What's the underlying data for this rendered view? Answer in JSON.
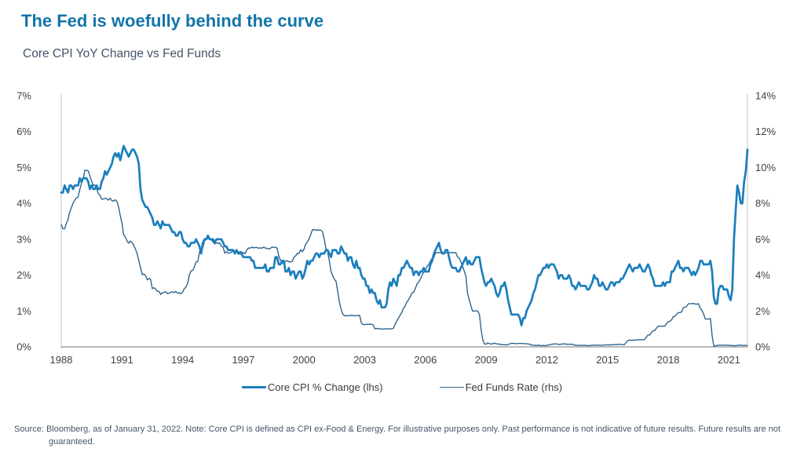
{
  "header": {
    "title": "The Fed is woefully behind the curve",
    "subtitle": "Core CPI YoY Change vs Fed Funds"
  },
  "colors": {
    "title": "#1375A8",
    "subtitle": "#44546A",
    "core_cpi_line": "#1B7EBD",
    "fed_funds_line": "#2D658F",
    "axis_side": "#C6C6C6",
    "axis_bottom": "#909090",
    "tick_text": "#3F3F3F",
    "footnote_text": "#44546A",
    "background": "#FFFFFF"
  },
  "legend": {
    "items": [
      {
        "label": "Core CPI % Change (lhs)",
        "color": "#1B7EBD",
        "thickness": 3
      },
      {
        "label": "Fed Funds Rate (rhs)",
        "color": "#2D658F",
        "thickness": 1.5
      }
    ]
  },
  "footnote": "Source: Bloomberg, as of January 31, 2022. Note: Core CPI is defined as CPI ex-Food & Energy. For illustrative purposes only. Past performance is not indicative of future results. Future results are not guaranteed.",
  "chart_data": {
    "type": "line",
    "title": "Core CPI YoY Change vs Fed Funds",
    "x_unit": "month",
    "x_start": "1988-01",
    "x_end": "2021-12",
    "x_tick_years": [
      1988,
      1991,
      1994,
      1997,
      2000,
      2003,
      2006,
      2009,
      2012,
      2015,
      2018,
      2021
    ],
    "left_axis": {
      "min": 0,
      "max": 7,
      "step": 1,
      "tick_labels": [
        "0%",
        "1%",
        "2%",
        "3%",
        "4%",
        "5%",
        "6%",
        "7%"
      ]
    },
    "right_axis": {
      "min": 0,
      "max": 14,
      "step": 2,
      "tick_labels": [
        "0%",
        "2%",
        "4%",
        "6%",
        "8%",
        "10%",
        "12%",
        "14%"
      ]
    },
    "grid": false,
    "legend_position": "bottom",
    "series": [
      {
        "name": "Core CPI % Change (lhs)",
        "axis": "left",
        "color": "#1B7EBD",
        "width": 2.7,
        "values": [
          4.3,
          4.3,
          4.5,
          4.4,
          4.3,
          4.5,
          4.5,
          4.4,
          4.5,
          4.5,
          4.5,
          4.7,
          4.6,
          4.7,
          4.7,
          4.7,
          4.6,
          4.4,
          4.5,
          4.4,
          4.4,
          4.5,
          4.4,
          4.4,
          4.6,
          4.7,
          4.9,
          4.8,
          4.9,
          5.0,
          5.1,
          5.3,
          5.4,
          5.3,
          5.4,
          5.2,
          5.4,
          5.6,
          5.5,
          5.4,
          5.3,
          5.4,
          5.5,
          5.5,
          5.4,
          5.3,
          5.1,
          4.4,
          4.1,
          4.0,
          3.9,
          3.9,
          3.8,
          3.7,
          3.6,
          3.4,
          3.4,
          3.5,
          3.4,
          3.3,
          3.5,
          3.4,
          3.4,
          3.4,
          3.4,
          3.3,
          3.2,
          3.2,
          3.1,
          3.1,
          3.2,
          3.2,
          3.0,
          2.9,
          2.9,
          2.8,
          2.8,
          2.9,
          2.9,
          2.9,
          3.0,
          2.9,
          2.8,
          2.6,
          2.9,
          3.0,
          3.0,
          3.1,
          3.0,
          3.0,
          3.0,
          2.9,
          3.0,
          3.0,
          3.0,
          3.0,
          2.9,
          2.8,
          2.8,
          2.7,
          2.7,
          2.7,
          2.7,
          2.6,
          2.7,
          2.6,
          2.6,
          2.6,
          2.5,
          2.5,
          2.5,
          2.5,
          2.5,
          2.4,
          2.4,
          2.2,
          2.2,
          2.2,
          2.2,
          2.2,
          2.2,
          2.3,
          2.1,
          2.1,
          2.2,
          2.2,
          2.2,
          2.5,
          2.5,
          2.3,
          2.3,
          2.4,
          2.4,
          2.1,
          2.1,
          2.2,
          2.0,
          2.1,
          2.1,
          1.9,
          2.0,
          2.1,
          2.1,
          1.9,
          2.0,
          2.2,
          2.4,
          2.3,
          2.4,
          2.4,
          2.5,
          2.6,
          2.6,
          2.5,
          2.6,
          2.6,
          2.6,
          2.7,
          2.7,
          2.6,
          2.5,
          2.7,
          2.7,
          2.7,
          2.6,
          2.6,
          2.8,
          2.7,
          2.6,
          2.6,
          2.4,
          2.5,
          2.5,
          2.3,
          2.2,
          2.4,
          2.2,
          2.2,
          2.0,
          1.9,
          1.9,
          1.7,
          1.7,
          1.5,
          1.6,
          1.5,
          1.5,
          1.3,
          1.2,
          1.3,
          1.1,
          1.1,
          1.1,
          1.2,
          1.6,
          1.8,
          1.7,
          1.9,
          1.8,
          1.7,
          2.0,
          2.0,
          2.2,
          2.2,
          2.3,
          2.4,
          2.3,
          2.2,
          2.2,
          2.0,
          2.1,
          2.1,
          2.0,
          2.1,
          2.1,
          2.2,
          2.1,
          2.1,
          2.1,
          2.3,
          2.4,
          2.6,
          2.7,
          2.8,
          2.9,
          2.7,
          2.6,
          2.6,
          2.7,
          2.7,
          2.5,
          2.3,
          2.2,
          2.2,
          2.2,
          2.1,
          2.1,
          2.2,
          2.3,
          2.4,
          2.5,
          2.3,
          2.4,
          2.3,
          2.3,
          2.4,
          2.5,
          2.5,
          2.5,
          2.2,
          2.0,
          1.8,
          1.7,
          1.8,
          1.8,
          1.9,
          1.8,
          1.7,
          1.5,
          1.4,
          1.5,
          1.7,
          1.7,
          1.8,
          1.6,
          1.3,
          1.1,
          0.9,
          0.9,
          0.9,
          0.9,
          0.9,
          0.8,
          0.6,
          0.8,
          0.8,
          1.0,
          1.1,
          1.2,
          1.3,
          1.5,
          1.6,
          1.8,
          2.0,
          2.0,
          2.1,
          2.2,
          2.2,
          2.3,
          2.2,
          2.3,
          2.3,
          2.3,
          2.2,
          2.1,
          1.9,
          2.0,
          2.0,
          1.9,
          1.9,
          1.9,
          2.0,
          1.9,
          1.7,
          1.7,
          1.6,
          1.7,
          1.8,
          1.7,
          1.7,
          1.7,
          1.7,
          1.6,
          1.6,
          1.7,
          1.8,
          2.0,
          1.9,
          1.9,
          1.7,
          1.7,
          1.8,
          1.7,
          1.6,
          1.6,
          1.7,
          1.8,
          1.8,
          1.7,
          1.8,
          1.8,
          1.8,
          1.9,
          1.9,
          2.0,
          2.1,
          2.2,
          2.3,
          2.2,
          2.1,
          2.2,
          2.2,
          2.2,
          2.3,
          2.2,
          2.1,
          2.1,
          2.2,
          2.3,
          2.2,
          2.0,
          1.9,
          1.7,
          1.7,
          1.7,
          1.7,
          1.7,
          1.8,
          1.7,
          1.8,
          1.8,
          1.8,
          2.1,
          2.1,
          2.2,
          2.3,
          2.4,
          2.2,
          2.2,
          2.1,
          2.2,
          2.2,
          2.2,
          2.1,
          2.0,
          2.1,
          2.0,
          2.1,
          2.2,
          2.4,
          2.4,
          2.3,
          2.3,
          2.3,
          2.3,
          2.4,
          2.1,
          1.4,
          1.2,
          1.2,
          1.6,
          1.7,
          1.7,
          1.6,
          1.6,
          1.6,
          1.4,
          1.3,
          1.6,
          3.0,
          3.8,
          4.5,
          4.3,
          4.0,
          4.0,
          4.6,
          4.9,
          5.5
        ]
      },
      {
        "name": "Fed Funds Rate (rhs)",
        "axis": "right",
        "color": "#2D658F",
        "width": 1.4,
        "values": [
          6.83,
          6.58,
          6.58,
          6.87,
          7.09,
          7.51,
          7.75,
          8.01,
          8.19,
          8.3,
          8.35,
          8.76,
          9.12,
          9.36,
          9.85,
          9.84,
          9.81,
          9.53,
          9.24,
          8.99,
          9.02,
          8.84,
          8.55,
          8.45,
          8.23,
          8.24,
          8.28,
          8.26,
          8.18,
          8.29,
          8.15,
          8.13,
          8.2,
          8.11,
          7.81,
          7.31,
          6.91,
          6.25,
          6.12,
          5.91,
          5.78,
          5.9,
          5.82,
          5.66,
          5.45,
          5.21,
          4.81,
          4.43,
          4.03,
          4.06,
          3.98,
          3.73,
          3.82,
          3.76,
          3.25,
          3.3,
          3.22,
          3.1,
          3.09,
          2.92,
          3.02,
          3.03,
          3.07,
          2.96,
          3.0,
          3.04,
          3.06,
          3.03,
          3.09,
          2.99,
          3.02,
          2.96,
          3.05,
          3.25,
          3.34,
          3.56,
          4.01,
          4.25,
          4.26,
          4.47,
          4.73,
          4.76,
          5.29,
          5.45,
          5.53,
          5.92,
          5.98,
          6.05,
          6.01,
          5.98,
          5.85,
          5.74,
          5.8,
          5.76,
          5.8,
          5.6,
          5.56,
          5.22,
          5.31,
          5.22,
          5.24,
          5.27,
          5.4,
          5.22,
          5.3,
          5.24,
          5.31,
          5.29,
          5.25,
          5.19,
          5.39,
          5.51,
          5.5,
          5.56,
          5.52,
          5.54,
          5.54,
          5.5,
          5.52,
          5.5,
          5.56,
          5.51,
          5.49,
          5.45,
          5.49,
          5.56,
          5.54,
          5.55,
          5.51,
          5.07,
          4.83,
          4.68,
          4.63,
          4.76,
          4.81,
          4.74,
          4.74,
          4.76,
          4.99,
          5.07,
          5.22,
          5.2,
          5.42,
          5.3,
          5.45,
          5.73,
          5.85,
          6.02,
          6.27,
          6.53,
          6.54,
          6.5,
          6.52,
          6.51,
          6.51,
          6.4,
          5.98,
          5.49,
          5.31,
          4.8,
          4.21,
          3.97,
          3.77,
          3.65,
          3.07,
          2.49,
          2.09,
          1.82,
          1.73,
          1.74,
          1.73,
          1.75,
          1.75,
          1.75,
          1.73,
          1.74,
          1.75,
          1.75,
          1.34,
          1.24,
          1.24,
          1.26,
          1.25,
          1.26,
          1.26,
          1.22,
          1.01,
          1.03,
          1.01,
          1.01,
          1.0,
          0.98,
          1.0,
          1.01,
          1.0,
          1.0,
          1.0,
          1.03,
          1.26,
          1.43,
          1.61,
          1.76,
          1.93,
          2.16,
          2.28,
          2.5,
          2.63,
          2.79,
          3.0,
          3.04,
          3.26,
          3.5,
          3.62,
          3.78,
          4.0,
          4.16,
          4.29,
          4.49,
          4.59,
          4.79,
          4.94,
          4.99,
          5.24,
          5.25,
          5.25,
          5.25,
          5.25,
          5.24,
          5.25,
          5.26,
          5.26,
          5.25,
          5.25,
          5.25,
          5.26,
          5.02,
          4.94,
          4.76,
          4.49,
          4.24,
          3.94,
          2.98,
          2.61,
          2.28,
          1.98,
          2.0,
          2.01,
          2.0,
          1.81,
          0.97,
          0.39,
          0.16,
          0.15,
          0.22,
          0.18,
          0.15,
          0.18,
          0.21,
          0.16,
          0.16,
          0.15,
          0.12,
          0.12,
          0.12,
          0.11,
          0.13,
          0.16,
          0.2,
          0.2,
          0.18,
          0.18,
          0.19,
          0.19,
          0.19,
          0.19,
          0.18,
          0.17,
          0.16,
          0.14,
          0.1,
          0.09,
          0.09,
          0.07,
          0.1,
          0.08,
          0.07,
          0.08,
          0.07,
          0.08,
          0.1,
          0.13,
          0.14,
          0.16,
          0.16,
          0.16,
          0.13,
          0.14,
          0.16,
          0.16,
          0.16,
          0.14,
          0.15,
          0.14,
          0.15,
          0.11,
          0.09,
          0.09,
          0.08,
          0.08,
          0.09,
          0.08,
          0.09,
          0.07,
          0.07,
          0.08,
          0.09,
          0.09,
          0.1,
          0.09,
          0.09,
          0.09,
          0.09,
          0.09,
          0.12,
          0.11,
          0.11,
          0.11,
          0.12,
          0.12,
          0.13,
          0.13,
          0.14,
          0.14,
          0.12,
          0.12,
          0.24,
          0.34,
          0.38,
          0.36,
          0.37,
          0.37,
          0.38,
          0.39,
          0.4,
          0.4,
          0.4,
          0.41,
          0.54,
          0.65,
          0.66,
          0.79,
          0.9,
          0.91,
          1.04,
          1.15,
          1.16,
          1.15,
          1.15,
          1.16,
          1.3,
          1.41,
          1.42,
          1.51,
          1.69,
          1.7,
          1.82,
          1.91,
          1.91,
          1.95,
          2.19,
          2.2,
          2.27,
          2.4,
          2.4,
          2.41,
          2.42,
          2.39,
          2.38,
          2.4,
          2.13,
          2.04,
          1.83,
          1.55,
          1.55,
          1.55,
          1.58,
          0.65,
          0.05,
          0.05,
          0.08,
          0.09,
          0.1,
          0.09,
          0.09,
          0.09,
          0.09,
          0.09,
          0.08,
          0.07,
          0.07,
          0.06,
          0.08,
          0.1,
          0.09,
          0.08,
          0.08,
          0.08,
          0.08
        ]
      }
    ]
  }
}
